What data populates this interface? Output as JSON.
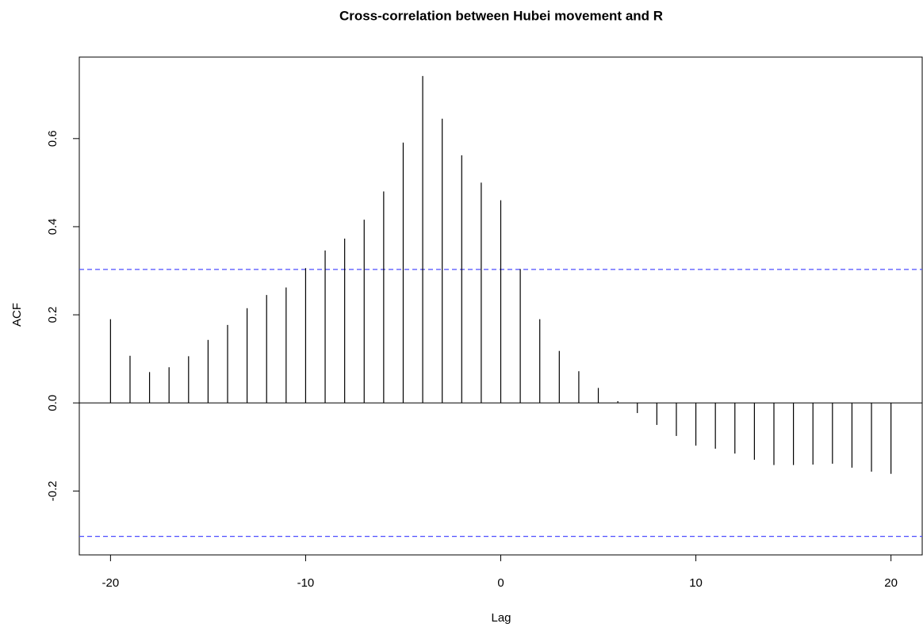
{
  "chart_data": {
    "type": "stem",
    "title": "Cross-correlation between Hubei movement and R",
    "x_label": "Lag",
    "y_label": "ACF",
    "x": [
      -20,
      -19,
      -18,
      -17,
      -16,
      -15,
      -14,
      -13,
      -12,
      -11,
      -10,
      -9,
      -8,
      -7,
      -6,
      -5,
      -4,
      -3,
      -2,
      -1,
      0,
      1,
      2,
      3,
      4,
      5,
      6,
      7,
      8,
      9,
      10,
      11,
      12,
      13,
      14,
      15,
      16,
      17,
      18,
      19,
      20
    ],
    "values": [
      0.19,
      0.107,
      0.07,
      0.081,
      0.106,
      0.143,
      0.177,
      0.215,
      0.245,
      0.262,
      0.306,
      0.346,
      0.373,
      0.416,
      0.48,
      0.591,
      0.742,
      0.645,
      0.562,
      0.5,
      0.46,
      0.304,
      0.19,
      0.118,
      0.072,
      0.034,
      0.004,
      -0.023,
      -0.05,
      -0.075,
      -0.097,
      -0.104,
      -0.115,
      -0.129,
      -0.141,
      -0.141,
      -0.14,
      -0.138,
      -0.147,
      -0.156,
      -0.161
    ],
    "color": "#000000",
    "confidence_lines": {
      "values": [
        0.303,
        -0.303
      ],
      "color": "#4d4dff"
    },
    "xlim": [
      -21.6,
      21.6
    ],
    "ylim": [
      -0.345,
      0.785
    ],
    "xticks": [
      -20,
      -10,
      0,
      10,
      20
    ],
    "yticks": [
      -0.2,
      {
        "value": 0,
        "label": "0.0"
      },
      0.2,
      0.4,
      0.6
    ]
  }
}
